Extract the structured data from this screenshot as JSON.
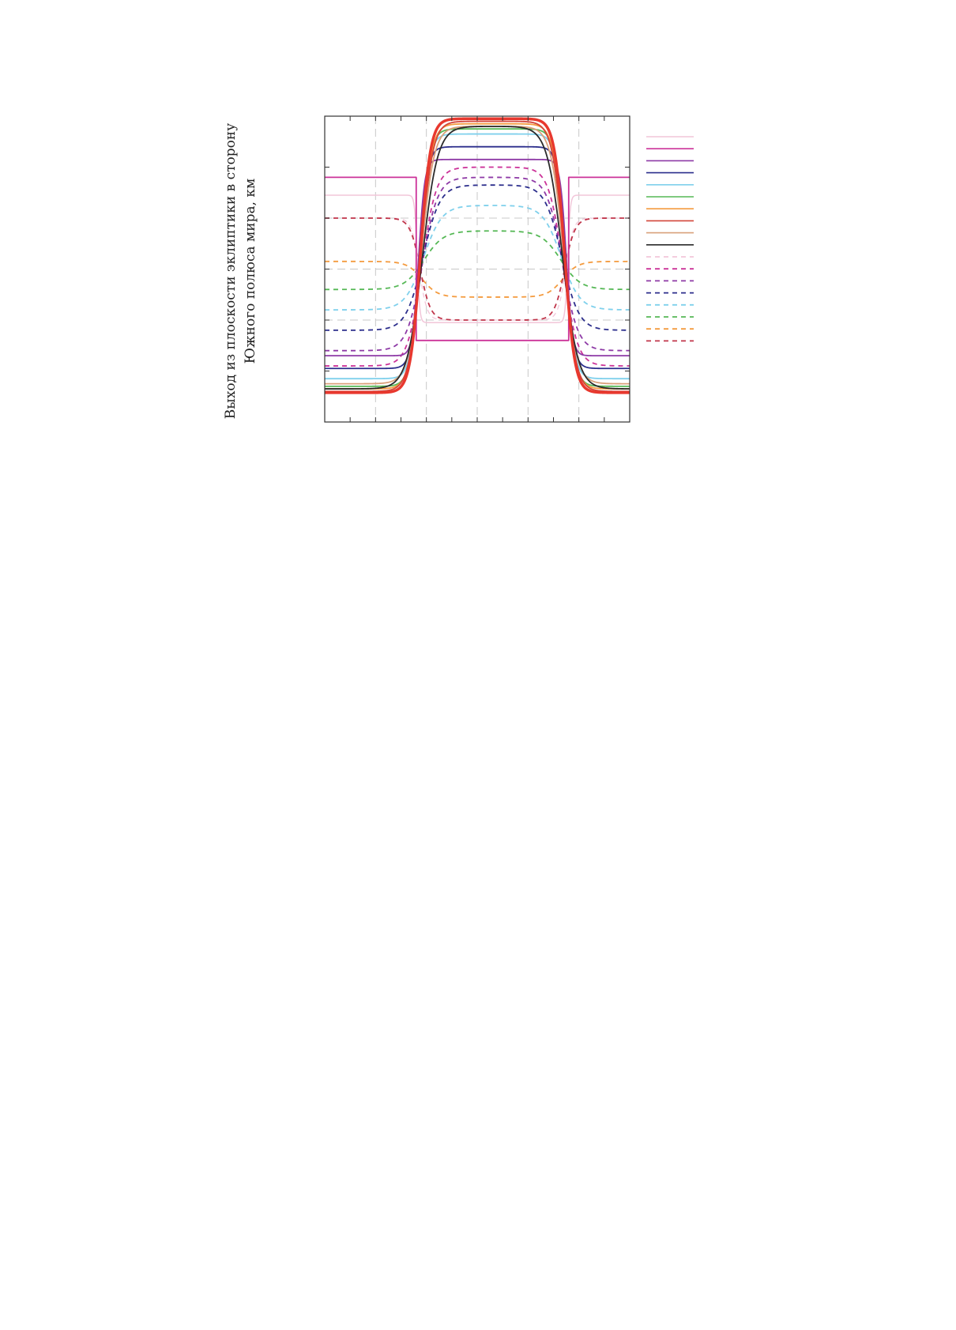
{
  "chart_data": {
    "type": "line",
    "title": "",
    "xlabel": "",
    "ylabel_lines": [
      "Выход из плоскости эклиптики в сторону",
      "Южного полюса мира, км"
    ],
    "xlim": [
      0,
      12
    ],
    "ylim": [
      0,
      12
    ],
    "xgrid": [
      2,
      4,
      6,
      8,
      10
    ],
    "ygrid": [
      8,
      6,
      4
    ],
    "grid": true,
    "legend_position": "right",
    "shape": {
      "rise1": 3.6,
      "rise2": 9.6
    },
    "series": [
      {
        "style": "solid",
        "color": "#f2c6d9",
        "width": 1.5,
        "outer": 8.9,
        "inner": 3.9,
        "w": 0.05
      },
      {
        "style": "solid",
        "color": "#cc3399",
        "width": 1.8,
        "outer": 9.6,
        "inner": 3.2,
        "w": 0.0
      },
      {
        "style": "solid",
        "color": "#8e3aa6",
        "width": 1.8,
        "outer": 2.6,
        "inner": 10.3,
        "w": 0.12
      },
      {
        "style": "solid",
        "color": "#2c2e8c",
        "width": 1.8,
        "outer": 2.1,
        "inner": 10.8,
        "w": 0.16
      },
      {
        "style": "solid",
        "color": "#7fd0ec",
        "width": 1.8,
        "outer": 1.7,
        "inner": 11.3,
        "w": 0.18
      },
      {
        "style": "solid",
        "color": "#55b855",
        "width": 1.8,
        "outer": 1.4,
        "inner": 11.5,
        "w": 0.19
      },
      {
        "style": "solid",
        "color": "#f49b3f",
        "width": 1.8,
        "outer": 1.3,
        "inner": 11.7,
        "w": 0.21
      },
      {
        "style": "solid",
        "color": "#d2453a",
        "width": 1.8,
        "outer": 1.2,
        "inner": 11.8,
        "w": 0.23
      },
      {
        "style": "solid",
        "color": "#d9a07a",
        "width": 1.8,
        "outer": 1.5,
        "inner": 11.6,
        "w": 0.25
      },
      {
        "style": "solid",
        "color": "#2b2b2b",
        "width": 1.8,
        "outer": 1.3,
        "inner": 11.6,
        "w": 0.3
      },
      {
        "style": "solid",
        "color": "#e8382e",
        "width": 3.5,
        "outer": 1.15,
        "inner": 11.9,
        "w": 0.2,
        "legend": false
      },
      {
        "style": "dashed",
        "color": "#f2c6d9",
        "width": 1.3,
        "outer": 8.0,
        "inner": 4.0,
        "w": 0.15
      },
      {
        "style": "dashed",
        "color": "#cc3399",
        "width": 1.8,
        "outer": 2.2,
        "inner": 10.0,
        "w": 0.28
      },
      {
        "style": "dashed",
        "color": "#8e3aa6",
        "width": 1.8,
        "outer": 2.8,
        "inner": 9.6,
        "w": 0.3
      },
      {
        "style": "dashed",
        "color": "#2c2e8c",
        "width": 1.8,
        "outer": 3.6,
        "inner": 9.3,
        "w": 0.33
      },
      {
        "style": "dashed",
        "color": "#7fd0ec",
        "width": 1.8,
        "outer": 4.4,
        "inner": 8.5,
        "w": 0.36
      },
      {
        "style": "dashed",
        "color": "#55b855",
        "width": 1.8,
        "outer": 5.2,
        "inner": 7.5,
        "w": 0.38
      },
      {
        "style": "dashed",
        "color": "#f49b3f",
        "width": 1.8,
        "outer": 6.3,
        "inner": 4.9,
        "w": 0.3
      },
      {
        "style": "dashed",
        "color": "#c0354a",
        "width": 1.8,
        "outer": 8.0,
        "inner": 4.0,
        "w": 0.2
      }
    ]
  }
}
